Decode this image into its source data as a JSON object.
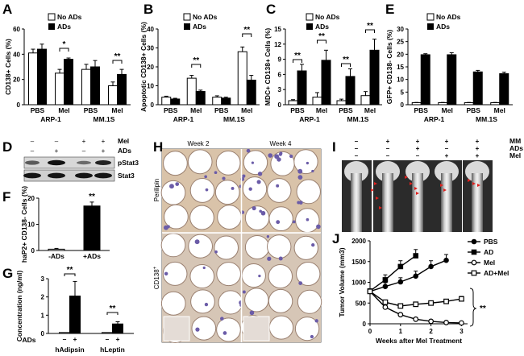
{
  "figure_id": "",
  "colors": {
    "dark": "#000000",
    "light": "#ffffff",
    "tissue": "#d8c7b8",
    "stain": "#6b5ca8"
  },
  "panels": {
    "A": {
      "label": "A"
    },
    "B": {
      "label": "B"
    },
    "C": {
      "label": "C"
    },
    "D": {
      "label": "D"
    },
    "E": {
      "label": "E"
    },
    "F": {
      "label": "F"
    },
    "G": {
      "label": "G"
    },
    "H": {
      "label": "H"
    },
    "I": {
      "label": "I"
    },
    "J": {
      "label": "J"
    }
  },
  "legend": {
    "no_ads": "No ADs",
    "ads": "ADs"
  },
  "groups": {
    "pbs": "PBS",
    "mel": "Mel",
    "arp1": "ARP-1",
    "mm1s": "MM.1S"
  },
  "western": {
    "mel_label": "Mel",
    "ads_label": "ADs",
    "mel_signs": [
      "–",
      "–",
      "+",
      "+"
    ],
    "ads_signs": [
      "–",
      "+",
      "–",
      "+"
    ],
    "band1": "pStat3",
    "band2": "Stat3"
  },
  "micro": {
    "week2": "Week 2",
    "week4": "Week 4",
    "row1": "Perilipin",
    "row2": "CD138",
    "row2_sup": "+"
  },
  "xray": {
    "mm_label": "MM",
    "ads_label": "ADs",
    "mel_label": "Mel",
    "mm_signs": [
      "–",
      "+",
      "+",
      "+",
      "+"
    ],
    "ads_signs": [
      "–",
      "–",
      "+",
      "–",
      "+"
    ],
    "mel_signs": [
      "–",
      "–",
      "–",
      "+",
      "+"
    ]
  },
  "chart_data": [
    {
      "panel": "A",
      "type": "bar",
      "ylabel": "CD138+ Cells (%)",
      "categories": [
        "PBS",
        "Mel",
        "PBS",
        "Mel"
      ],
      "groups": [
        "ARP-1",
        "MM.1S"
      ],
      "ylim": [
        0,
        60
      ],
      "yticks": [
        "0",
        "20",
        "40",
        "60"
      ],
      "series": [
        {
          "name": "No ADs",
          "values": [
            41,
            25,
            28,
            15
          ],
          "errors": [
            3,
            3,
            4,
            3
          ]
        },
        {
          "name": "ADs",
          "values": [
            44,
            36,
            30,
            24
          ],
          "errors": [
            4,
            1,
            5,
            4
          ]
        }
      ],
      "annotations": [
        "*",
        "**"
      ]
    },
    {
      "panel": "B",
      "type": "bar",
      "ylabel": "Apoptotic CD138+ Cells (%)",
      "categories": [
        "PBS",
        "Mel",
        "PBS",
        "Mel"
      ],
      "groups": [
        "ARP-1",
        "MM.1S"
      ],
      "ylim": [
        0,
        40
      ],
      "yticks": [
        "0",
        "10",
        "20",
        "30",
        "40"
      ],
      "series": [
        {
          "name": "No ADs",
          "values": [
            4,
            14,
            4,
            28
          ],
          "errors": [
            0.5,
            1.5,
            0.7,
            2.5
          ]
        },
        {
          "name": "ADs",
          "values": [
            3,
            7,
            3.5,
            13
          ],
          "errors": [
            0.4,
            0.7,
            0.5,
            2.5
          ]
        }
      ],
      "annotations": [
        "**",
        "**"
      ]
    },
    {
      "panel": "C",
      "type": "bar",
      "ylabel": "MDC+ CD138+ Cells (%)",
      "categories": [
        "PBS",
        "Mel",
        "PBS",
        "Mel"
      ],
      "groups": [
        "ARP-1",
        "MM.1S"
      ],
      "ylim": [
        0,
        15
      ],
      "yticks": [
        "0",
        "3",
        "6",
        "9",
        "12",
        "15"
      ],
      "series": [
        {
          "name": "No ADs",
          "values": [
            0.8,
            1.5,
            0.8,
            1.8
          ],
          "errors": [
            0.2,
            0.9,
            0.3,
            0.8
          ]
        },
        {
          "name": "ADs",
          "values": [
            6.7,
            8.8,
            5.6,
            10.8
          ],
          "errors": [
            1.3,
            2.0,
            1.5,
            2.2
          ]
        }
      ],
      "annotations": [
        "**",
        "**",
        "**",
        "**"
      ]
    },
    {
      "panel": "E",
      "type": "bar",
      "ylabel": "GFP+ CD138- Cells (%)",
      "categories": [
        "PBS",
        "Mel",
        "PBS",
        "Mel"
      ],
      "groups": [
        "ARP-1",
        "MM.1S"
      ],
      "ylim": [
        0,
        30
      ],
      "yticks": [
        "0",
        "5",
        "10",
        "15",
        "20",
        "25",
        "30"
      ],
      "series": [
        {
          "name": "No ADs",
          "values": [
            0.8,
            0.8,
            0.8,
            0.8
          ],
          "errors": [
            0.1,
            0.1,
            0.1,
            0.1
          ]
        },
        {
          "name": "ADs",
          "values": [
            19.8,
            19.8,
            13,
            12.3
          ],
          "errors": [
            0.4,
            0.8,
            0.6,
            0.6
          ]
        }
      ]
    },
    {
      "panel": "F",
      "type": "bar",
      "ylabel": "haP2+ CD138- Cells (%)",
      "categories": [
        "-ADs",
        "+ADs"
      ],
      "ylim": [
        0,
        20
      ],
      "yticks": [
        "0",
        "10",
        "20"
      ],
      "series": [
        {
          "name": "haP2+ CD138-",
          "values": [
            0.5,
            17
          ],
          "errors": [
            0.3,
            1.5
          ],
          "fills": [
            "#ffffff",
            "#000000"
          ]
        }
      ],
      "annotations": [
        "**"
      ]
    },
    {
      "panel": "G",
      "type": "bar",
      "ylabel": "Concentration (ng/ml)",
      "categories": [
        "hAdipsin",
        "hLeptin"
      ],
      "xlabel": "ADs",
      "ylim": [
        0,
        3
      ],
      "yticks": [
        "0",
        "1",
        "2",
        "3"
      ],
      "series": [
        {
          "name": "– ADs",
          "values": [
            0.05,
            0.05
          ],
          "errors": [
            0,
            0
          ]
        },
        {
          "name": "+ ADs",
          "values": [
            2.05,
            0.52
          ],
          "errors": [
            0.8,
            0.12
          ]
        }
      ],
      "signs": [
        "–",
        "+",
        "–",
        "+"
      ],
      "annotations": [
        "**",
        "**"
      ]
    },
    {
      "panel": "J",
      "type": "line",
      "xlabel": "Weeks after Mel Treatment",
      "ylabel": "Tumor Volume (mm3)",
      "xlim": [
        0,
        3.2
      ],
      "ylim": [
        0,
        2000
      ],
      "xticks": [
        "0",
        "1",
        "2",
        "3"
      ],
      "yticks": [
        "0",
        "500",
        "1000",
        "1500",
        "2000"
      ],
      "series": [
        {
          "name": "PBS",
          "marker": "filled-circle",
          "x": [
            0,
            0.5,
            1,
            1.5,
            2,
            2.5
          ],
          "y": [
            780,
            900,
            1010,
            1150,
            1380,
            1530
          ],
          "errors": [
            40,
            90,
            100,
            120,
            140,
            140
          ]
        },
        {
          "name": "AD",
          "marker": "filled-square",
          "x": [
            0,
            0.5,
            1,
            1.5
          ],
          "y": [
            790,
            1060,
            1380,
            1640
          ],
          "errors": [
            50,
            120,
            140,
            150
          ]
        },
        {
          "name": "Mel",
          "marker": "open-circle",
          "x": [
            0,
            0.5,
            1,
            1.5,
            2,
            2.5,
            3
          ],
          "y": [
            780,
            400,
            220,
            110,
            60,
            30,
            20
          ],
          "errors": [
            30,
            40,
            30,
            20,
            10,
            10,
            10
          ]
        },
        {
          "name": "AD+Mel",
          "marker": "open-square",
          "x": [
            0,
            0.5,
            1,
            1.5,
            2,
            2.5,
            3
          ],
          "y": [
            780,
            520,
            430,
            470,
            500,
            540,
            600
          ],
          "errors": [
            30,
            40,
            40,
            40,
            40,
            50,
            60
          ]
        }
      ],
      "annotations": [
        "**"
      ]
    }
  ]
}
